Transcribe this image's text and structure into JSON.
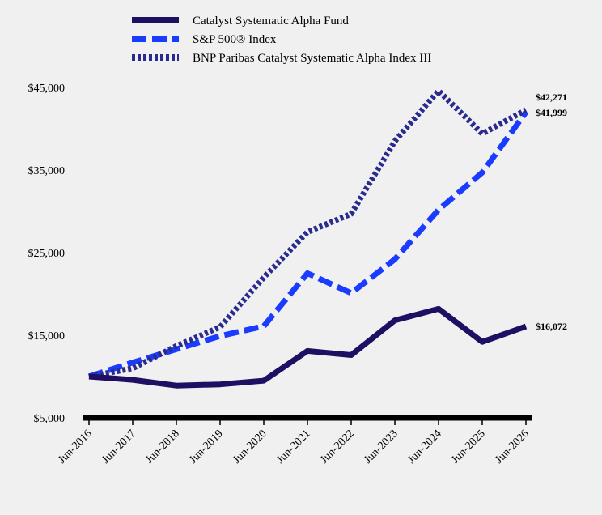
{
  "chart_data": {
    "type": "line",
    "title": "",
    "xlabel": "",
    "ylabel": "",
    "categories": [
      "Jun-2016",
      "Jun-2017",
      "Jun-2018",
      "Jun-2019",
      "Jun-2020",
      "Jun-2021",
      "Jun-2022",
      "Jun-2023",
      "Jun-2024",
      "Jun-2025",
      "Jun-2026"
    ],
    "y_ticks": [
      "$5,000",
      "$15,000",
      "$25,000",
      "$35,000",
      "$45,000"
    ],
    "y_tick_values": [
      5000,
      15000,
      25000,
      35000,
      45000
    ],
    "ylim": [
      5000,
      45000
    ],
    "grid": false,
    "legend_position": "top-left",
    "series": [
      {
        "name": "Catalyst Systematic Alpha Fund",
        "values": [
          10000,
          9600,
          8900,
          9050,
          9500,
          13100,
          12600,
          16800,
          18200,
          14200,
          16072
        ],
        "color": "#1f0f63",
        "style": "solid",
        "end_label": "$16,072"
      },
      {
        "name": "S&P 500",
        "name_suffix": "® Index",
        "values": [
          10000,
          11700,
          13300,
          14900,
          16100,
          22500,
          20100,
          24200,
          30200,
          34700,
          41999
        ],
        "color": "#1a3cff",
        "style": "dashed",
        "end_label": "$41,999"
      },
      {
        "name": "BNP Paribas Catalyst Systematic Alpha Index III",
        "values": [
          10000,
          11000,
          13700,
          16000,
          22000,
          27500,
          29700,
          38500,
          44600,
          39400,
          42271
        ],
        "color": "#2a2a8f",
        "style": "dotted",
        "end_label": "$42,271"
      }
    ]
  }
}
